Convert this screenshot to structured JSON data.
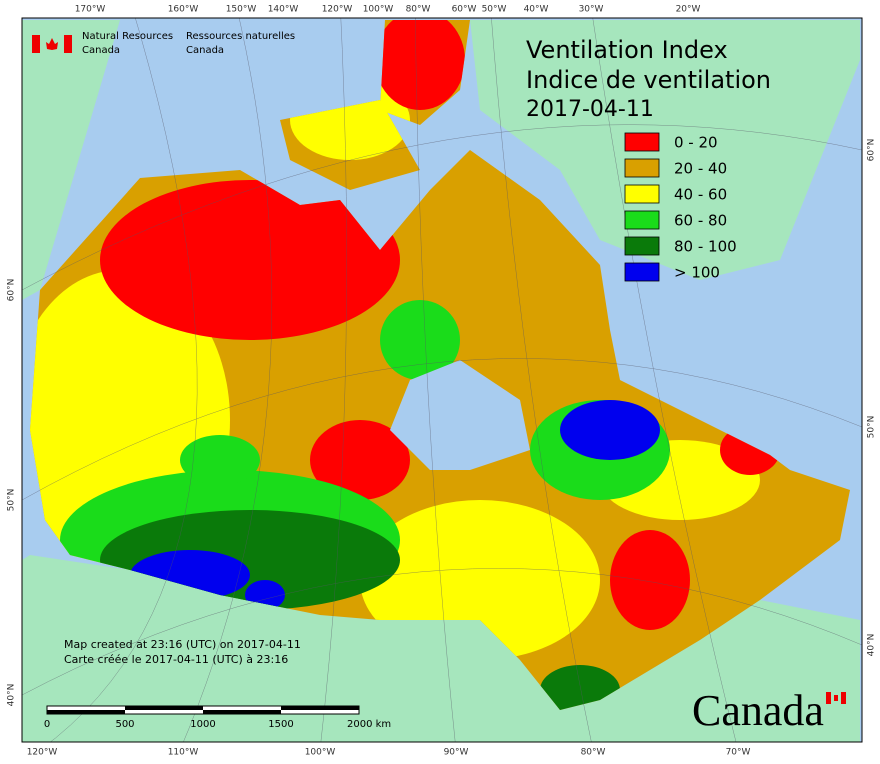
{
  "agency": {
    "en_line1": "Natural Resources",
    "en_line2": "Canada",
    "fr_line1": "Ressources naturelles",
    "fr_line2": "Canada"
  },
  "title": {
    "line1": "Ventilation Index",
    "line2": "Indice de ventilation",
    "date": "2017-04-11"
  },
  "legend": [
    {
      "label": "0 - 20",
      "color": "#ff0000"
    },
    {
      "label": "20 - 40",
      "color": "#d9a000"
    },
    {
      "label": "40 - 60",
      "color": "#ffff00"
    },
    {
      "label": "60 - 80",
      "color": "#1adc1a"
    },
    {
      "label": "80 - 100",
      "color": "#0a7a0a"
    },
    {
      "label": "> 100",
      "color": "#0000ee"
    }
  ],
  "graticule": {
    "top": [
      "170°W",
      "160°W",
      "150°W",
      "140°W",
      "120°W",
      "100°W",
      "80°W",
      "60°W",
      "50°W",
      "40°W",
      "30°W",
      "20°W"
    ],
    "bottom": [
      "120°W",
      "110°W",
      "100°W",
      "90°W",
      "80°W",
      "70°W"
    ],
    "left": [
      "60°N",
      "50°N",
      "40°N"
    ],
    "right": [
      "60°N",
      "50°N",
      "40°N"
    ]
  },
  "footer": {
    "line1": "Map created at 23:16 (UTC) on 2017-04-11",
    "line2": "Carte créée le 2017-04-11 (UTC) à 23:16"
  },
  "scale_bar": {
    "labels": [
      "0",
      "500",
      "1000",
      "1500",
      "2000 km"
    ]
  },
  "wordmark": "Canada"
}
